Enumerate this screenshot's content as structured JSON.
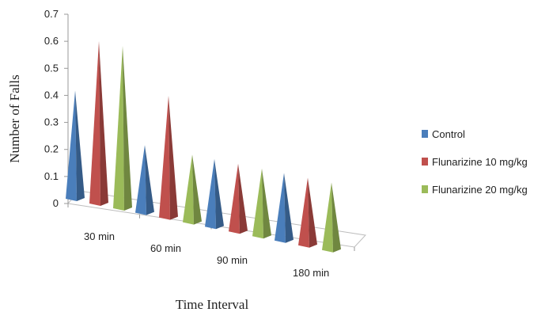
{
  "chart_data": {
    "type": "bar",
    "style": "3d-cone",
    "title": "",
    "xlabel": "Time Interval",
    "ylabel": "Number of Falls",
    "ylim": [
      0,
      0.7
    ],
    "yticks": [
      "0",
      "0.1",
      "0.2",
      "0.3",
      "0.4",
      "0.5",
      "0.6",
      "0.7"
    ],
    "categories": [
      "30 min",
      "60 min",
      "90 min",
      "180 min"
    ],
    "series": [
      {
        "name": "Control",
        "color": "#4a7ebb",
        "values": [
          0.4,
          0.25,
          0.25,
          0.25
        ]
      },
      {
        "name": "Flunarizine 10 mg/kg",
        "color": "#c0504d",
        "values": [
          0.6,
          0.45,
          0.25,
          0.25
        ]
      },
      {
        "name": "Flunarizine 20 mg/kg",
        "color": "#9bbb59",
        "values": [
          0.6,
          0.25,
          0.25,
          0.25
        ]
      }
    ],
    "legend_position": "right",
    "grid": false
  }
}
